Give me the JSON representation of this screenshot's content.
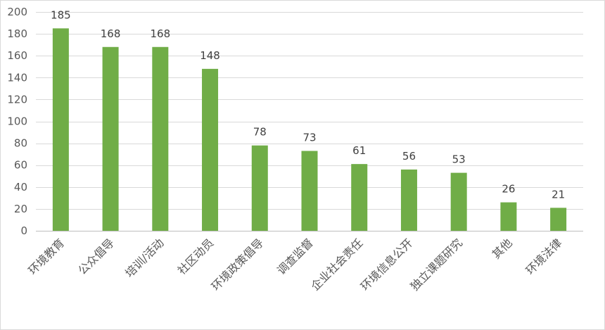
{
  "chart_data": {
    "type": "bar",
    "categories": [
      "环境教育",
      "公众倡导",
      "培训/活动",
      "社区动员",
      "环境政策倡导",
      "调查监督",
      "企业社会责任",
      "环境信息公开",
      "独立课题研究",
      "其他",
      "环境法律"
    ],
    "values": [
      185,
      168,
      168,
      148,
      78,
      73,
      61,
      56,
      53,
      26,
      21
    ],
    "ylim": [
      0,
      200
    ],
    "yticks": [
      0,
      20,
      40,
      60,
      80,
      100,
      120,
      140,
      160,
      180,
      200
    ],
    "grid": true,
    "legend": "none",
    "bar_color": "#70ad47"
  }
}
